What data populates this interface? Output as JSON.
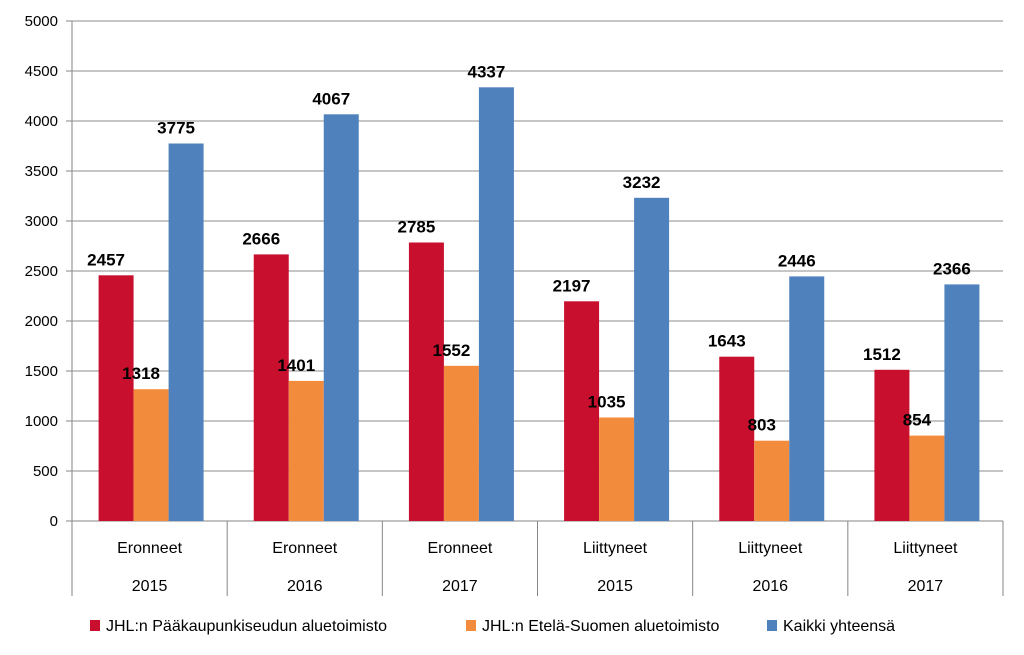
{
  "chart_data": {
    "type": "bar",
    "ylim": [
      0,
      5000
    ],
    "yticks": [
      0,
      500,
      1000,
      1500,
      2000,
      2500,
      3000,
      3500,
      4000,
      4500,
      5000
    ],
    "grid": true,
    "legend_position": "bottom",
    "categories": [
      {
        "group": "Eronneet",
        "year": "2015"
      },
      {
        "group": "Eronneet",
        "year": "2016"
      },
      {
        "group": "Eronneet",
        "year": "2017"
      },
      {
        "group": "Liittyneet",
        "year": "2015"
      },
      {
        "group": "Liittyneet",
        "year": "2016"
      },
      {
        "group": "Liittyneet",
        "year": "2017"
      }
    ],
    "series": [
      {
        "name": "JHL:n Pääkaupunkiseudun aluetoimisto",
        "color": "#C8102E",
        "values": [
          2457,
          2666,
          2785,
          2197,
          1643,
          1512
        ]
      },
      {
        "name": "JHL:n Etelä-Suomen aluetoimisto",
        "color": "#F38B3C",
        "values": [
          1318,
          1401,
          1552,
          1035,
          803,
          854
        ]
      },
      {
        "name": "Kaikki yhteensä",
        "color": "#4F81BD",
        "values": [
          3775,
          4067,
          4337,
          3232,
          2446,
          2366
        ]
      }
    ]
  }
}
